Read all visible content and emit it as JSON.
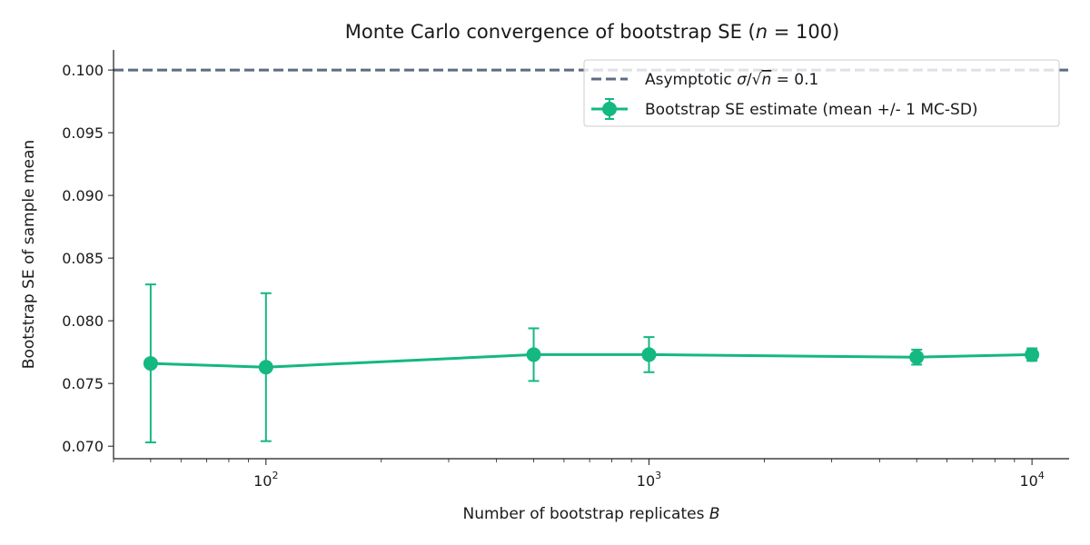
{
  "chart_data": {
    "type": "line",
    "title": "Monte Carlo convergence of bootstrap SE (",
    "title_var": "n",
    "title_eq": " = 100)",
    "xlabel": "Number of bootstrap replicates ",
    "xlabel_var": "B",
    "ylabel": "Bootstrap SE of sample mean",
    "xscale": "log",
    "xlim": [
      40,
      12500
    ],
    "ylim": [
      0.069,
      0.1016
    ],
    "y_ticks": [
      "0.070",
      "0.075",
      "0.080",
      "0.085",
      "0.090",
      "0.095",
      "0.100"
    ],
    "x_tick_base": "10",
    "x_tick_exponents": [
      "2",
      "3",
      "4"
    ],
    "grid": false,
    "legend_position": "top-right",
    "reference_line": {
      "name_prefix": "Asymptotic ",
      "name_sigma": "σ",
      "name_slash": "/√",
      "name_n": "n",
      "name_suffix": " = 0.1",
      "value": 0.1,
      "style": "dashed",
      "color": "#5d6b85"
    },
    "series": [
      {
        "name": "Bootstrap SE estimate (mean +/- 1 MC-SD)",
        "color": "#14b881",
        "x": [
          50,
          100,
          500,
          1000,
          5000,
          10000
        ],
        "y": [
          0.0766,
          0.0763,
          0.0773,
          0.0773,
          0.0771,
          0.0773
        ],
        "err": [
          0.0063,
          0.0059,
          0.0021,
          0.0014,
          0.0006,
          0.0005
        ]
      }
    ]
  }
}
